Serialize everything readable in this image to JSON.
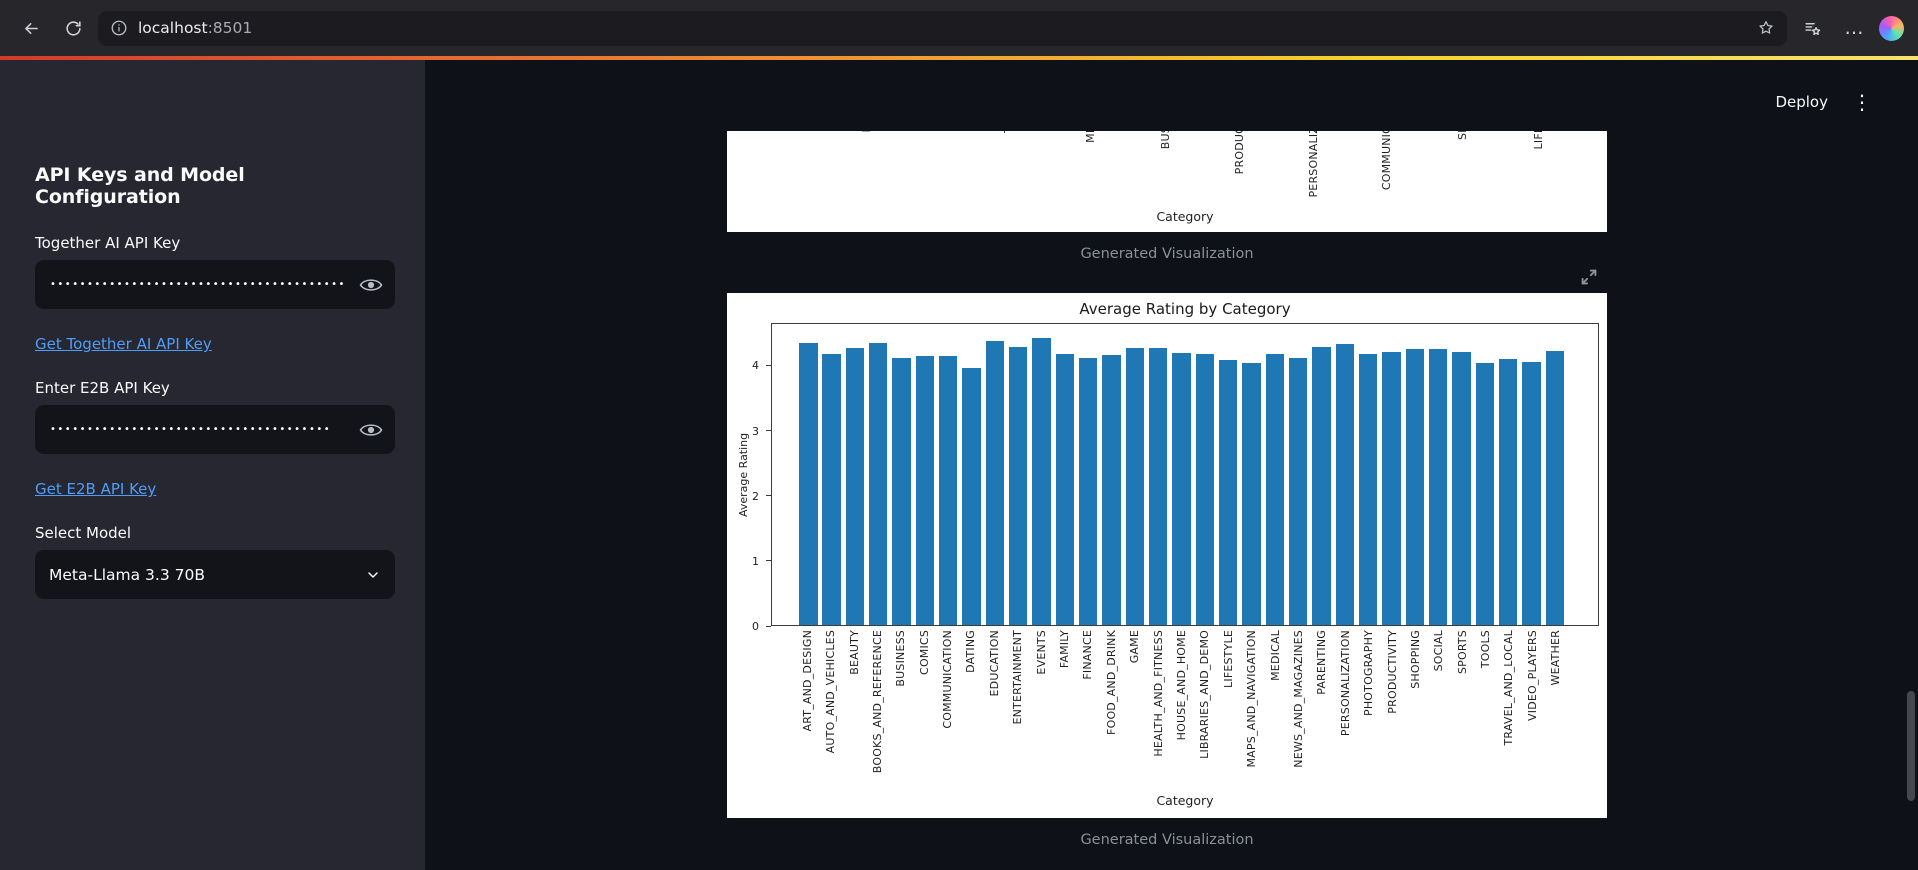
{
  "browser": {
    "url_host": "localhost",
    "url_port": ":8501"
  },
  "header": {
    "deploy_label": "Deploy"
  },
  "sidebar": {
    "title": "API Keys and Model Configuration",
    "together": {
      "label": "Together AI API Key",
      "masked_value": "••••••••••••••••••••••••••••••••••••••••",
      "link": "Get Together AI API Key"
    },
    "e2b": {
      "label": "Enter E2B API Key",
      "masked_value": "••••••••••••••••••••••••••••••••••••••",
      "link": "Get E2B API Key"
    },
    "model": {
      "label": "Select Model",
      "selected": "Meta-Llama 3.3 70B"
    }
  },
  "main": {
    "caption_1": "Generated Visualization",
    "caption_2": "Generated Visualization"
  },
  "chart_data": [
    {
      "type": "bar",
      "title": "",
      "xlabel": "Category",
      "visibility": "partial — only the bottom ends of rotated x tick labels and the x-axis label are visible; bars are scrolled out of view",
      "visible_tick_label_fragments": [
        {
          "text": "F",
          "x": 133
        },
        {
          "text": "T",
          "x": 275
        },
        {
          "text": "ME",
          "x": 357
        },
        {
          "text": "BUS",
          "x": 432
        },
        {
          "text": "PRODUC",
          "x": 506
        },
        {
          "text": "PERSONALIZ",
          "x": 580
        },
        {
          "text": "COMMUNIC",
          "x": 653
        },
        {
          "text": "SP",
          "x": 729
        },
        {
          "text": "LIFE",
          "x": 805
        }
      ]
    },
    {
      "type": "bar",
      "title": "Average Rating by Category",
      "xlabel": "Category",
      "ylabel": "Average Rating",
      "ylim": [
        0,
        4.65
      ],
      "yticks": [
        0,
        1,
        2,
        3,
        4
      ],
      "bar_color": "#1f77b4",
      "grid": false,
      "legend": "none",
      "categories": [
        "ART_AND_DESIGN",
        "AUTO_AND_VEHICLES",
        "BEAUTY",
        "BOOKS_AND_REFERENCE",
        "BUSINESS",
        "COMICS",
        "COMMUNICATION",
        "DATING",
        "EDUCATION",
        "ENTERTAINMENT",
        "EVENTS",
        "FAMILY",
        "FINANCE",
        "FOOD_AND_DRINK",
        "GAME",
        "HEALTH_AND_FITNESS",
        "HOUSE_AND_HOME",
        "LIBRARIES_AND_DEMO",
        "LIFESTYLE",
        "MAPS_AND_NAVIGATION",
        "MEDICAL",
        "NEWS_AND_MAGAZINES",
        "PARENTING",
        "PERSONALIZATION",
        "PHOTOGRAPHY",
        "PRODUCTIVITY",
        "SHOPPING",
        "SOCIAL",
        "SPORTS",
        "TOOLS",
        "TRAVEL_AND_LOCAL",
        "VIDEO_PLAYERS",
        "WEATHER"
      ],
      "values": [
        4.36,
        4.19,
        4.28,
        4.35,
        4.12,
        4.16,
        4.16,
        3.97,
        4.39,
        4.3,
        4.44,
        4.19,
        4.13,
        4.17,
        4.28,
        4.28,
        4.2,
        4.18,
        4.09,
        4.05,
        4.19,
        4.13,
        4.3,
        4.34,
        4.19,
        4.21,
        4.26,
        4.26,
        4.22,
        4.05,
        4.11,
        4.06,
        4.24
      ]
    }
  ]
}
